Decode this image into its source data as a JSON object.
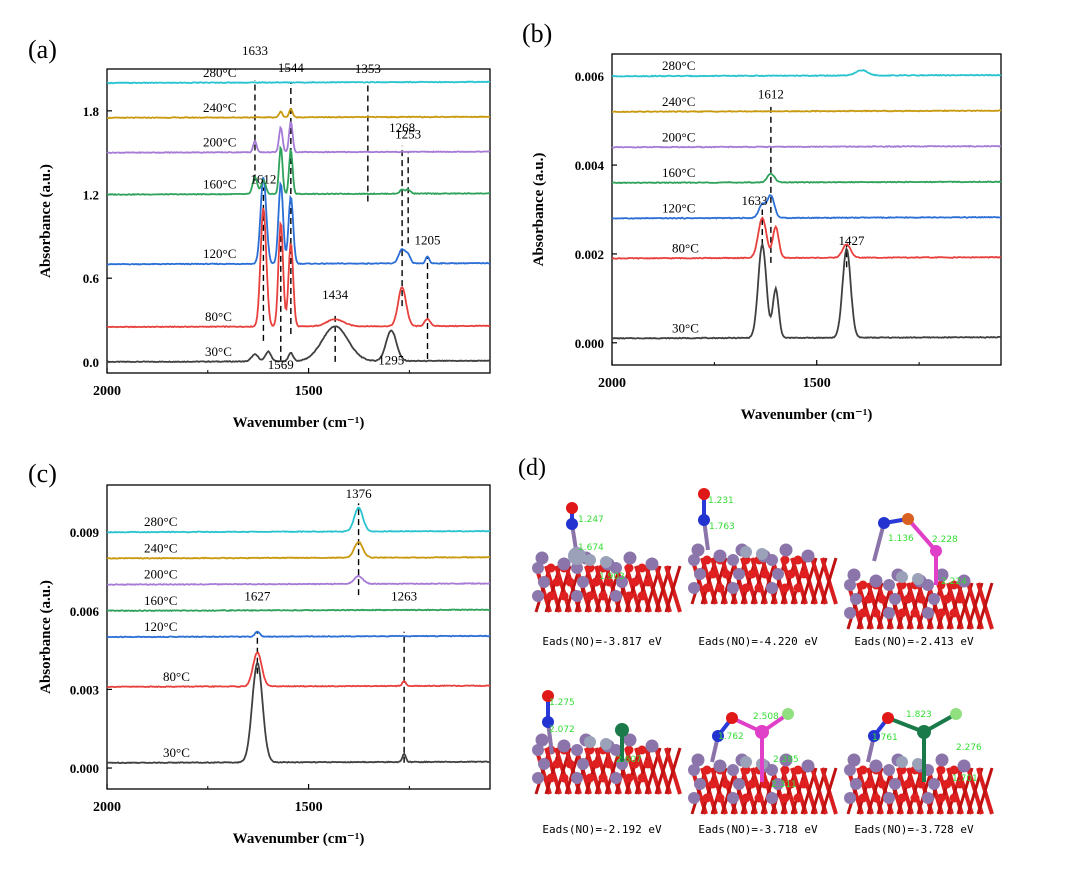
{
  "figure": {
    "panel_labels": [
      "(a)",
      "(b)",
      "(c)",
      "(d)"
    ],
    "series_colors": {
      "30°C": "#404040",
      "80°C": "#e8403c",
      "120°C": "#2b6fd6",
      "160°C": "#2ea25a",
      "200°C": "#a57bd6",
      "240°C": "#c9990e",
      "280°C": "#27c3cf"
    }
  },
  "chart_data": [
    {
      "type": "line",
      "panel": "(a)",
      "xlabel": "Wavenumber (cm⁻¹)",
      "ylabel": "Absorbance (a.u.)",
      "xlim": [
        2000,
        1050
      ],
      "ylim": [
        -0.08,
        2.1
      ],
      "x_ticks": [
        2000,
        1500
      ],
      "y_ticks": [
        0.0,
        0.6,
        1.2,
        1.8
      ],
      "y_tick_labels": [
        "0.0",
        "0.6",
        "1.2",
        "1.8"
      ],
      "series": [
        {
          "name": "30°C",
          "baseline": 0.0,
          "peaks": [
            [
              1633,
              0.05,
              12
            ],
            [
              1600,
              0.07,
              10
            ],
            [
              1544,
              0.06,
              8
            ],
            [
              1434,
              0.25,
              45
            ],
            [
              1295,
              0.22,
              18
            ]
          ]
        },
        {
          "name": "80°C",
          "baseline": 0.25,
          "peaks": [
            [
              1612,
              0.85,
              10
            ],
            [
              1569,
              0.75,
              8
            ],
            [
              1544,
              0.6,
              8
            ],
            [
              1434,
              0.05,
              30
            ],
            [
              1268,
              0.28,
              14
            ],
            [
              1205,
              0.05,
              10
            ]
          ]
        },
        {
          "name": "120°C",
          "baseline": 0.7,
          "peaks": [
            [
              1612,
              0.62,
              10
            ],
            [
              1569,
              0.58,
              8
            ],
            [
              1544,
              0.48,
              8
            ],
            [
              1268,
              0.1,
              12
            ],
            [
              1253,
              0.05,
              8
            ],
            [
              1205,
              0.05,
              6
            ]
          ]
        },
        {
          "name": "160°C",
          "baseline": 1.2,
          "peaks": [
            [
              1633,
              0.12,
              8
            ],
            [
              1612,
              0.1,
              8
            ],
            [
              1569,
              0.34,
              6
            ],
            [
              1544,
              0.32,
              6
            ],
            [
              1268,
              0.03,
              8
            ],
            [
              1253,
              0.03,
              8
            ]
          ]
        },
        {
          "name": "200°C",
          "baseline": 1.5,
          "peaks": [
            [
              1633,
              0.08,
              6
            ],
            [
              1569,
              0.18,
              6
            ],
            [
              1544,
              0.22,
              6
            ]
          ]
        },
        {
          "name": "240°C",
          "baseline": 1.75,
          "peaks": [
            [
              1569,
              0.04,
              6
            ],
            [
              1544,
              0.06,
              6
            ]
          ]
        },
        {
          "name": "280°C",
          "baseline": 2.0,
          "peaks": []
        }
      ],
      "annotations": [
        {
          "text": "1633",
          "x": 1633,
          "y": 2.2
        },
        {
          "text": "1544",
          "x": 1544,
          "y": 2.08
        },
        {
          "text": "1353",
          "x": 1353,
          "y": 2.07
        },
        {
          "text": "1268",
          "x": 1268,
          "y": 1.65
        },
        {
          "text": "1253",
          "x": 1253,
          "y": 1.6
        },
        {
          "text": "1612",
          "x": 1612,
          "y": 1.28
        },
        {
          "text": "1205",
          "x": 1205,
          "y": 0.84
        },
        {
          "text": "1434",
          "x": 1434,
          "y": 0.45
        },
        {
          "text": "1295",
          "x": 1295,
          "y": -0.02
        },
        {
          "text": "1569",
          "x": 1569,
          "y": -0.05
        }
      ],
      "dashed_lines": [
        {
          "x": 1633,
          "y1": 1.3,
          "y2": 2.02
        },
        {
          "x": 1544,
          "y1": 0.2,
          "y2": 2.0
        },
        {
          "x": 1353,
          "y1": 1.15,
          "y2": 2.0
        },
        {
          "x": 1268,
          "y1": 0.4,
          "y2": 1.55
        },
        {
          "x": 1253,
          "y1": 0.85,
          "y2": 1.5
        },
        {
          "x": 1612,
          "y1": 0.15,
          "y2": 1.25
        },
        {
          "x": 1569,
          "y1": 0.0,
          "y2": 1.0
        },
        {
          "x": 1205,
          "y1": 0.02,
          "y2": 0.75
        },
        {
          "x": 1434,
          "y1": 0.0,
          "y2": 0.35
        }
      ]
    },
    {
      "type": "line",
      "panel": "(b)",
      "xlabel": "Wavenumber (cm⁻¹)",
      "ylabel": "Absorbance (a.u.)",
      "xlim": [
        2000,
        1050
      ],
      "ylim": [
        -0.0005,
        0.0065
      ],
      "x_ticks": [
        2000,
        1500
      ],
      "y_ticks": [
        0.0,
        0.002,
        0.004,
        0.006
      ],
      "y_tick_labels": [
        "0.000",
        "0.002",
        "0.004",
        "0.006"
      ],
      "series": [
        {
          "name": "30°C",
          "baseline": 0.0001,
          "peaks": [
            [
              1633,
              0.0021,
              14
            ],
            [
              1600,
              0.0011,
              10
            ],
            [
              1427,
              0.002,
              14
            ]
          ]
        },
        {
          "name": "80°C",
          "baseline": 0.0019,
          "peaks": [
            [
              1633,
              0.0009,
              14
            ],
            [
              1600,
              0.0007,
              10
            ],
            [
              1427,
              0.0003,
              14
            ]
          ]
        },
        {
          "name": "120°C",
          "baseline": 0.0028,
          "peaks": [
            [
              1633,
              0.0003,
              12
            ],
            [
              1612,
              0.0005,
              12
            ]
          ]
        },
        {
          "name": "160°C",
          "baseline": 0.0036,
          "peaks": [
            [
              1612,
              0.0002,
              12
            ]
          ]
        },
        {
          "name": "200°C",
          "baseline": 0.0044,
          "peaks": []
        },
        {
          "name": "240°C",
          "baseline": 0.0052,
          "peaks": []
        },
        {
          "name": "280°C",
          "baseline": 0.006,
          "peaks": [
            [
              1390,
              0.00012,
              20
            ]
          ]
        }
      ],
      "annotations": [
        {
          "text": "1612",
          "x": 1612,
          "y": 0.0055
        },
        {
          "text": "1633",
          "x": 1652,
          "y": 0.0031
        },
        {
          "text": "1427",
          "x": 1415,
          "y": 0.0022
        }
      ],
      "dashed_lines": [
        {
          "x": 1612,
          "y1": 0.0018,
          "y2": 0.0054
        },
        {
          "x": 1633,
          "y1": 0.0022,
          "y2": 0.003
        },
        {
          "x": 1427,
          "y1": 0.0017,
          "y2": 0.0022
        }
      ]
    },
    {
      "type": "line",
      "panel": "(c)",
      "xlabel": "Wavenumber (cm⁻¹)",
      "ylabel": "Absorbance (a.u.)",
      "xlim": [
        2000,
        1050
      ],
      "ylim": [
        -0.0008,
        0.0108
      ],
      "x_ticks": [
        2000,
        1500
      ],
      "y_ticks": [
        0.0,
        0.003,
        0.006,
        0.009
      ],
      "y_tick_labels": [
        "0.000",
        "0.003",
        "0.006",
        "0.009"
      ],
      "series": [
        {
          "name": "30°C",
          "baseline": 0.0002,
          "peaks": [
            [
              1627,
              0.0038,
              18
            ],
            [
              1263,
              0.0003,
              6
            ]
          ]
        },
        {
          "name": "80°C",
          "baseline": 0.0031,
          "peaks": [
            [
              1627,
              0.0013,
              15
            ],
            [
              1263,
              0.0002,
              6
            ]
          ]
        },
        {
          "name": "120°C",
          "baseline": 0.005,
          "peaks": [
            [
              1627,
              0.0002,
              8
            ]
          ]
        },
        {
          "name": "160°C",
          "baseline": 0.006,
          "peaks": []
        },
        {
          "name": "200°C",
          "baseline": 0.007,
          "peaks": [
            [
              1376,
              0.0003,
              15
            ]
          ]
        },
        {
          "name": "240°C",
          "baseline": 0.008,
          "peaks": [
            [
              1376,
              0.0006,
              15
            ]
          ]
        },
        {
          "name": "280°C",
          "baseline": 0.009,
          "peaks": [
            [
              1376,
              0.0009,
              15
            ]
          ]
        }
      ],
      "annotations": [
        {
          "text": "1376",
          "x": 1376,
          "y": 0.0103
        },
        {
          "text": "1627",
          "x": 1627,
          "y": 0.0064
        },
        {
          "text": "1263",
          "x": 1263,
          "y": 0.0064
        }
      ],
      "dashed_lines": [
        {
          "x": 1376,
          "y1": 0.0066,
          "y2": 0.0101
        },
        {
          "x": 1627,
          "y1": 0.0036,
          "y2": 0.0052
        },
        {
          "x": 1263,
          "y1": 0.0002,
          "y2": 0.0052
        }
      ]
    }
  ],
  "panel_d": {
    "structures": [
      {
        "energy_label": "Eads(NO)=-3.817 eV",
        "distances": [
          "1.247",
          "1.674",
          "1.903"
        ]
      },
      {
        "energy_label": "Eads(NO)=-4.220 eV",
        "distances": [
          "1.231",
          "1.763"
        ]
      },
      {
        "energy_label": "Eads(NO)=-2.413 eV",
        "distances": [
          "1.136",
          "2.228",
          "2.224"
        ]
      },
      {
        "energy_label": "Eads(NO)=-2.192 eV",
        "distances": [
          "1.275",
          "2.072",
          "2.607"
        ]
      },
      {
        "energy_label": "Eads(NO)=-3.718 eV",
        "distances": [
          "1.762",
          "2.508",
          "2.285",
          "2.311"
        ]
      },
      {
        "energy_label": "Eads(NO)=-3.728 eV",
        "distances": [
          "1.761",
          "1.823",
          "2.276",
          "1.701"
        ]
      }
    ]
  }
}
